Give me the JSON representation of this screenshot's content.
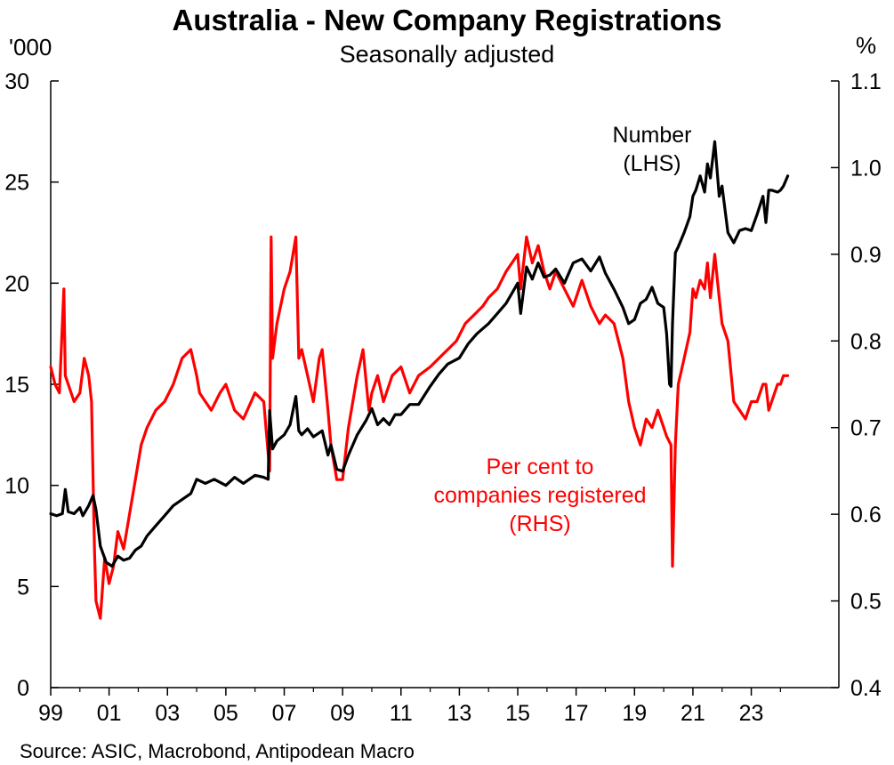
{
  "header": {
    "title": "Australia - New Company Registrations",
    "subtitle": "Seasonally adjusted",
    "left_unit": "'000",
    "right_unit": "%"
  },
  "footer": {
    "source": "Source: ASIC, Macrobond, Antipodean Macro"
  },
  "colors": {
    "number_line": "#000000",
    "percent_line": "#ff0000",
    "axis": "#000000"
  },
  "chart_data": {
    "type": "line",
    "title": "Australia - New Company Registrations",
    "subtitle": "Seasonally adjusted",
    "x_range": [
      1999.0,
      2026.0
    ],
    "x_ticks": [
      1999,
      2001,
      2003,
      2005,
      2007,
      2009,
      2011,
      2013,
      2015,
      2017,
      2019,
      2021,
      2023
    ],
    "x_tick_labels": [
      "99",
      "01",
      "03",
      "05",
      "07",
      "09",
      "11",
      "13",
      "15",
      "17",
      "19",
      "21",
      "23"
    ],
    "y_left": {
      "unit": "'000",
      "range": [
        0,
        30
      ],
      "ticks": [
        0,
        5,
        10,
        15,
        20,
        25,
        30
      ]
    },
    "y_right": {
      "unit": "%",
      "range": [
        0.4,
        1.1
      ],
      "ticks": [
        0.4,
        0.5,
        0.6,
        0.7,
        0.8,
        0.9,
        1.0,
        1.1
      ],
      "tick_labels": [
        "0.4",
        "0.5",
        "0.6",
        "0.7",
        "0.8",
        "0.9",
        "1.0",
        "1.1"
      ]
    },
    "grid": false,
    "annotations": [
      {
        "lines": [
          "Number",
          "(LHS)"
        ],
        "color": "#000000",
        "series": "number"
      },
      {
        "lines": [
          "Per cent to",
          "companies registered",
          "(RHS)"
        ],
        "color": "#ff0000",
        "series": "percent"
      }
    ],
    "series": [
      {
        "key": "number",
        "axis": "left",
        "color": "#000000",
        "x": [
          1999.0,
          1999.2,
          1999.4,
          1999.5,
          1999.6,
          1999.8,
          2000.0,
          2000.1,
          2000.3,
          2000.45,
          2000.55,
          2000.7,
          2000.9,
          2001.1,
          2001.3,
          2001.5,
          2001.7,
          2001.9,
          2002.1,
          2002.3,
          2002.6,
          2002.9,
          2003.2,
          2003.5,
          2003.8,
          2004.0,
          2004.3,
          2004.6,
          2005.0,
          2005.3,
          2005.6,
          2006.0,
          2006.3,
          2006.45,
          2006.5,
          2006.6,
          2006.75,
          2007.0,
          2007.2,
          2007.4,
          2007.5,
          2007.6,
          2007.8,
          2008.0,
          2008.3,
          2008.5,
          2008.6,
          2008.8,
          2009.0,
          2009.2,
          2009.5,
          2009.8,
          2010.0,
          2010.2,
          2010.4,
          2010.6,
          2010.8,
          2011.0,
          2011.3,
          2011.6,
          2012.0,
          2012.3,
          2012.6,
          2013.0,
          2013.3,
          2013.6,
          2014.0,
          2014.3,
          2014.6,
          2014.8,
          2015.0,
          2015.1,
          2015.3,
          2015.5,
          2015.7,
          2015.9,
          2016.1,
          2016.3,
          2016.6,
          2016.9,
          2017.2,
          2017.5,
          2017.8,
          2018.0,
          2018.3,
          2018.6,
          2018.8,
          2019.0,
          2019.2,
          2019.4,
          2019.6,
          2019.8,
          2020.0,
          2020.1,
          2020.2,
          2020.25,
          2020.3,
          2020.4,
          2020.5,
          2020.7,
          2020.9,
          2021.0,
          2021.1,
          2021.25,
          2021.4,
          2021.5,
          2021.6,
          2021.75,
          2021.9,
          2022.0,
          2022.2,
          2022.4,
          2022.6,
          2022.8,
          2023.0,
          2023.2,
          2023.4,
          2023.5,
          2023.6,
          2023.7,
          2023.9,
          2024.0,
          2024.1,
          2024.25
        ],
        "y": [
          8.6,
          8.5,
          8.6,
          9.8,
          8.7,
          8.6,
          8.9,
          8.5,
          9.0,
          9.5,
          8.8,
          7.0,
          6.2,
          6.0,
          6.5,
          6.3,
          6.4,
          6.8,
          7.0,
          7.5,
          8.0,
          8.5,
          9.0,
          9.3,
          9.6,
          10.3,
          10.1,
          10.3,
          10.0,
          10.4,
          10.1,
          10.5,
          10.4,
          10.3,
          13.7,
          11.8,
          12.2,
          12.5,
          13.0,
          14.4,
          12.7,
          12.5,
          12.8,
          12.4,
          12.7,
          11.5,
          12.0,
          10.8,
          10.7,
          11.5,
          12.5,
          13.2,
          13.8,
          13.0,
          13.3,
          13.0,
          13.5,
          13.5,
          14.0,
          14.0,
          14.9,
          15.5,
          16.0,
          16.3,
          17.0,
          17.5,
          18.0,
          18.5,
          19.0,
          19.5,
          20.0,
          18.5,
          20.8,
          20.2,
          21.0,
          20.3,
          20.4,
          20.7,
          20.0,
          21.0,
          21.2,
          20.6,
          21.3,
          20.5,
          19.7,
          18.8,
          18.0,
          18.2,
          19.0,
          19.2,
          19.8,
          19.0,
          18.8,
          17.5,
          15.0,
          14.9,
          18.0,
          21.5,
          21.8,
          22.5,
          23.3,
          24.3,
          24.6,
          25.3,
          24.5,
          25.9,
          25.2,
          27.0,
          24.3,
          24.8,
          22.5,
          22.0,
          22.6,
          22.7,
          22.6,
          23.4,
          24.3,
          23.0,
          24.6,
          24.6,
          24.5,
          24.6,
          24.8,
          25.3
        ]
      },
      {
        "key": "percent",
        "axis": "right",
        "color": "#ff0000",
        "x": [
          1999.0,
          1999.15,
          1999.3,
          1999.45,
          1999.5,
          1999.6,
          1999.8,
          2000.0,
          2000.15,
          2000.3,
          2000.4,
          2000.5,
          2000.55,
          2000.7,
          2000.85,
          2001.0,
          2001.15,
          2001.3,
          2001.5,
          2001.7,
          2001.9,
          2002.1,
          2002.3,
          2002.6,
          2002.9,
          2003.2,
          2003.5,
          2003.8,
          2004.0,
          2004.1,
          2004.3,
          2004.5,
          2004.8,
          2005.0,
          2005.3,
          2005.6,
          2006.0,
          2006.3,
          2006.5,
          2006.55,
          2006.6,
          2006.75,
          2007.0,
          2007.2,
          2007.4,
          2007.5,
          2007.6,
          2007.8,
          2008.0,
          2008.2,
          2008.3,
          2008.5,
          2008.6,
          2008.8,
          2009.0,
          2009.2,
          2009.5,
          2009.7,
          2009.9,
          2010.0,
          2010.2,
          2010.4,
          2010.7,
          2011.0,
          2011.3,
          2011.6,
          2012.0,
          2012.3,
          2012.6,
          2012.9,
          2013.2,
          2013.5,
          2013.8,
          2014.0,
          2014.3,
          2014.6,
          2014.8,
          2015.0,
          2015.1,
          2015.3,
          2015.5,
          2015.7,
          2015.9,
          2016.1,
          2016.3,
          2016.6,
          2016.9,
          2017.2,
          2017.5,
          2017.8,
          2018.0,
          2018.3,
          2018.6,
          2018.8,
          2019.0,
          2019.2,
          2019.4,
          2019.6,
          2019.8,
          2020.0,
          2020.1,
          2020.25,
          2020.3,
          2020.4,
          2020.5,
          2020.7,
          2020.9,
          2021.0,
          2021.1,
          2021.25,
          2021.4,
          2021.5,
          2021.6,
          2021.75,
          2021.9,
          2022.0,
          2022.2,
          2022.4,
          2022.6,
          2022.8,
          2023.0,
          2023.2,
          2023.4,
          2023.5,
          2023.6,
          2023.7,
          2023.9,
          2024.0,
          2024.1,
          2024.25
        ],
        "y": [
          0.77,
          0.75,
          0.74,
          0.86,
          0.76,
          0.75,
          0.73,
          0.74,
          0.78,
          0.76,
          0.73,
          0.56,
          0.5,
          0.48,
          0.55,
          0.52,
          0.54,
          0.58,
          0.56,
          0.6,
          0.64,
          0.68,
          0.7,
          0.72,
          0.73,
          0.75,
          0.78,
          0.79,
          0.76,
          0.74,
          0.73,
          0.72,
          0.74,
          0.75,
          0.72,
          0.71,
          0.74,
          0.73,
          0.65,
          0.92,
          0.78,
          0.82,
          0.86,
          0.88,
          0.92,
          0.78,
          0.79,
          0.76,
          0.73,
          0.78,
          0.79,
          0.72,
          0.68,
          0.64,
          0.64,
          0.7,
          0.76,
          0.79,
          0.72,
          0.74,
          0.76,
          0.73,
          0.76,
          0.77,
          0.74,
          0.76,
          0.77,
          0.78,
          0.79,
          0.8,
          0.82,
          0.83,
          0.84,
          0.85,
          0.86,
          0.88,
          0.89,
          0.9,
          0.86,
          0.92,
          0.89,
          0.91,
          0.88,
          0.86,
          0.88,
          0.86,
          0.84,
          0.87,
          0.84,
          0.82,
          0.83,
          0.82,
          0.78,
          0.73,
          0.7,
          0.68,
          0.71,
          0.7,
          0.72,
          0.7,
          0.69,
          0.68,
          0.54,
          0.68,
          0.75,
          0.78,
          0.81,
          0.86,
          0.85,
          0.87,
          0.86,
          0.89,
          0.85,
          0.9,
          0.85,
          0.82,
          0.8,
          0.73,
          0.72,
          0.71,
          0.73,
          0.73,
          0.75,
          0.75,
          0.72,
          0.73,
          0.75,
          0.75,
          0.76,
          0.76
        ]
      }
    ]
  }
}
